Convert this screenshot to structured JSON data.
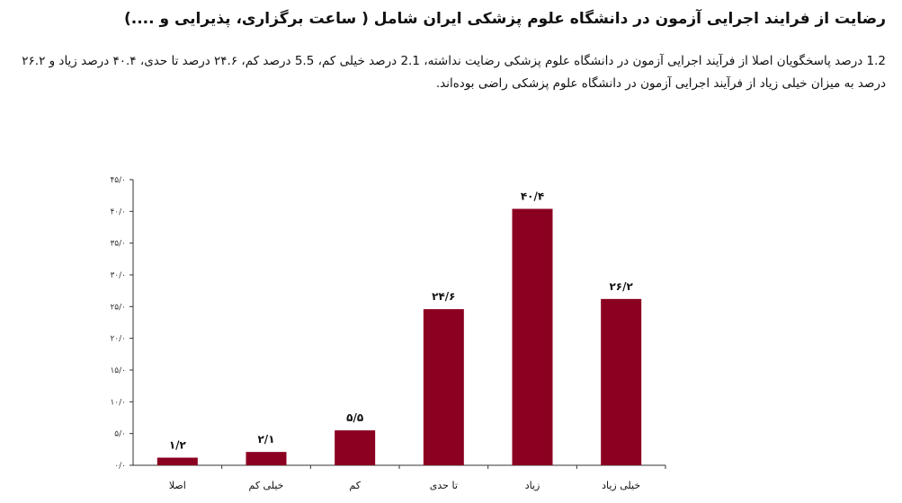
{
  "page": {
    "title": "رضایت از فرایند اجرایی آزمون در دانشگاه علوم پزشکی ایران شامل ( ساعت برگزاری، پذیرایی و ....)",
    "description": "1.2 درصد پاسخگویان اصلا از فرآیند اجرایی آزمون در دانشگاه علوم پزشکی رضایت نداشته، 2.1 درصد خیلی کم، 5.5 درصد کم، ۲۴.۶ درصد تا حدی، ۴۰.۴ درصد زیاد و ۲۶.۲ درصد به میزان خیلی زیاد از فرآیند اجرایی آزمون در دانشگاه علوم پزشکی راضی بوده‌اند."
  },
  "chart_data": {
    "type": "bar",
    "categories": [
      "اصلا",
      "خیلی کم",
      "کم",
      "تا حدی",
      "زیاد",
      "خیلی زیاد"
    ],
    "values": [
      1.2,
      2.1,
      5.5,
      24.6,
      40.4,
      26.2
    ],
    "data_labels": [
      "۱/۲",
      "۲/۱",
      "۵/۵",
      "۲۴/۶",
      "۴۰/۴",
      "۲۶/۲"
    ],
    "y_ticks": [
      0,
      5,
      10,
      15,
      20,
      25,
      30,
      35,
      40,
      45
    ],
    "y_tick_labels": [
      "۰/۰",
      "۵/۰",
      "۱۰/۰",
      "۱۵/۰",
      "۲۰/۰",
      "۲۵/۰",
      "۳۰/۰",
      "۳۵/۰",
      "۴۰/۰",
      "۴۵/۰"
    ],
    "ylim": [
      0,
      45
    ],
    "bar_color": "#8b0020",
    "grid": false,
    "legend": "none"
  }
}
